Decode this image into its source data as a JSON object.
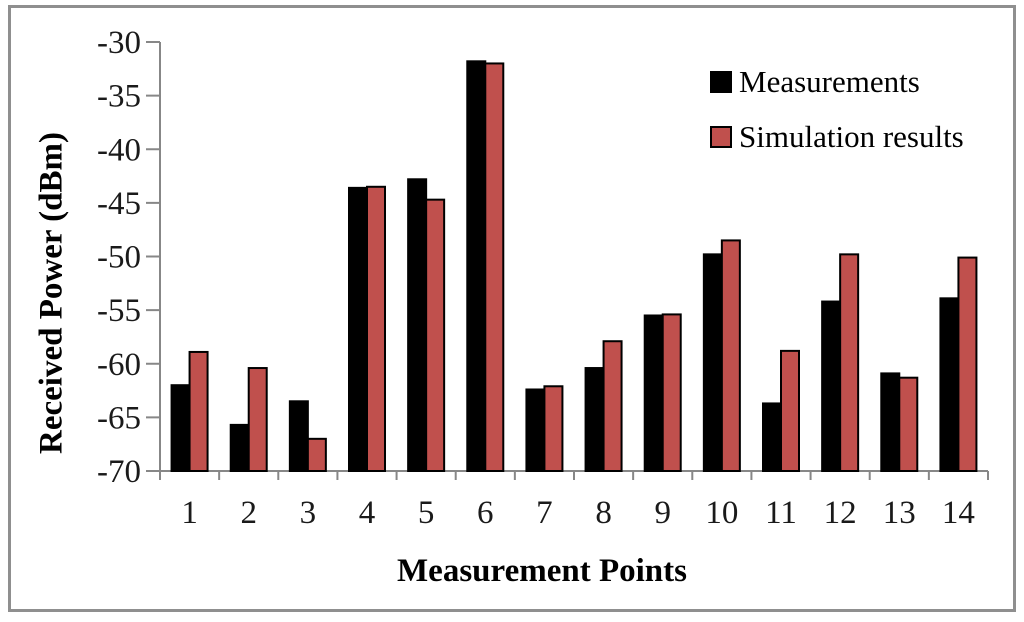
{
  "figure": {
    "background": "#FFFFFF",
    "border_color": "#8F8F8F"
  },
  "chart_data": {
    "type": "bar",
    "title": "",
    "xlabel": "Measurement Points",
    "ylabel": "Received Power (dBm)",
    "categories": [
      "1",
      "2",
      "3",
      "4",
      "5",
      "6",
      "7",
      "8",
      "9",
      "10",
      "11",
      "12",
      "13",
      "14"
    ],
    "series": [
      {
        "name": "Measurements",
        "color": "#000000",
        "values": [
          -62.0,
          -65.7,
          -63.5,
          -43.6,
          -42.8,
          -31.8,
          -62.4,
          -60.4,
          -55.5,
          -49.8,
          -63.7,
          -54.2,
          -60.9,
          -53.9
        ]
      },
      {
        "name": "Simulation results",
        "color": "#C0504D",
        "values": [
          -58.9,
          -60.4,
          -67.0,
          -43.5,
          -44.7,
          -32.0,
          -62.1,
          -57.9,
          -55.4,
          -48.5,
          -58.8,
          -49.8,
          -61.3,
          -50.1
        ]
      }
    ],
    "ylim": [
      -70,
      -30
    ],
    "yticks": [
      -30,
      -35,
      -40,
      -45,
      -50,
      -55,
      -60,
      -65,
      -70
    ],
    "axis_color": "#878787",
    "bar_outline_color": "#000000",
    "legend_position": "top-right",
    "grid": false
  }
}
